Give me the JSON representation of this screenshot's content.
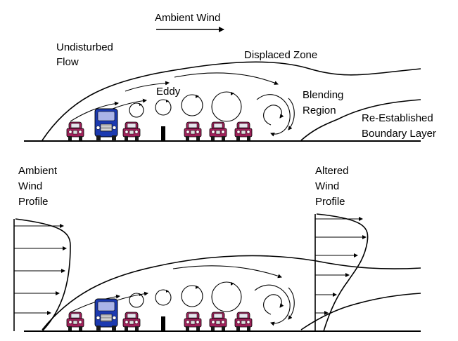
{
  "top_panel": {
    "wind_label": "Ambient Wind",
    "undisturbed": [
      "Undisturbed",
      "Flow"
    ],
    "displaced_zone": "Displaced Zone",
    "eddy": "Eddy",
    "blending": [
      "Blending",
      "Region"
    ],
    "reestablished": [
      "Re-Established",
      "Boundary Layer"
    ]
  },
  "bottom_panel": {
    "ambient_profile": [
      "Ambient",
      "Wind",
      "Profile"
    ],
    "altered_profile": [
      "Altered",
      "Wind",
      "Profile"
    ]
  },
  "colors": {
    "car_body": "#a0215a",
    "car_window": "#e6e6ee",
    "truck_body": "#1c3ab0",
    "truck_window": "#aab4e8",
    "wheel": "#1a1a1a",
    "line": "#000000"
  },
  "icons": [
    "car-icon",
    "truck-icon",
    "barrier-post-icon",
    "eddy-circle-icon",
    "arrow-icon"
  ]
}
